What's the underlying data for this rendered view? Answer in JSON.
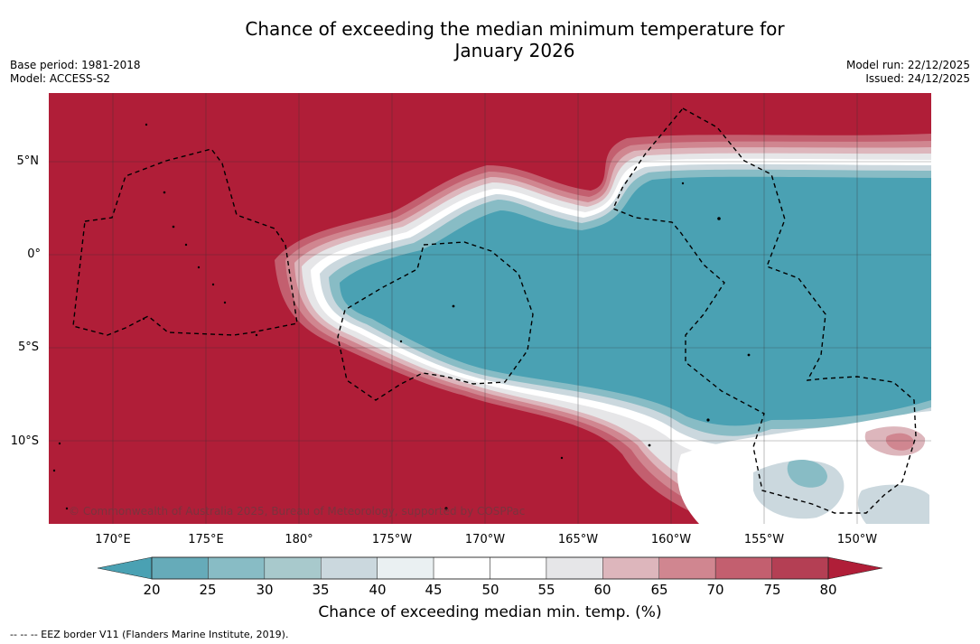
{
  "title": {
    "line1": "Chance of exceeding the median minimum temperature for",
    "line2": "January 2026"
  },
  "meta": {
    "base_period": "Base period: 1981-2018",
    "model": "Model: ACCESS-S2",
    "model_run": "Model run: 22/12/2025",
    "issued": "Issued: 24/12/2025"
  },
  "map": {
    "lat_labels": [
      "5°N",
      "0°",
      "5°S",
      "10°S"
    ],
    "lon_labels": [
      "170°E",
      "175°E",
      "180°",
      "175°W",
      "170°W",
      "165°W",
      "160°W",
      "155°W",
      "150°W"
    ],
    "copyright": "© Commonwealth of Australia 2025, Bureau of Meteorology, supported by COSPPac"
  },
  "colorbar": {
    "ticks": [
      "20",
      "25",
      "30",
      "35",
      "40",
      "45",
      "50",
      "55",
      "60",
      "65",
      "70",
      "75",
      "80"
    ],
    "colors": [
      "#4aa1b3",
      "#66abb9",
      "#88bcc5",
      "#a8c9cc",
      "#cbd8de",
      "#eaf0f2",
      "#ffffff",
      "#ffffff",
      "#e6e6e8",
      "#ddb6bc",
      "#d08690",
      "#c35f6f",
      "#b43f54",
      "#b01e38"
    ],
    "label": "Chance of exceeding median min. temp. (%)"
  },
  "legend_note": "--  --  -- EEZ border V11 (Flanders Marine Institute, 2019)."
}
